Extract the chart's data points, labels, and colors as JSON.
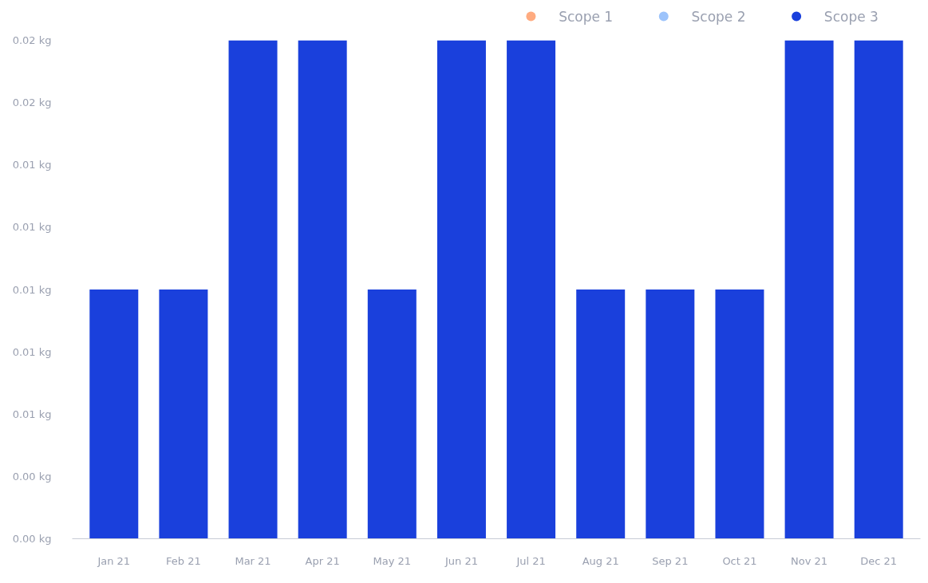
{
  "chart_data": {
    "type": "bar",
    "stacked": true,
    "categories": [
      "Jan 21",
      "Feb 21",
      "Mar 21",
      "Apr 21",
      "May 21",
      "Jun 21",
      "Jul 21",
      "Aug 21",
      "Sep 21",
      "Oct 21",
      "Nov 21",
      "Dec 21"
    ],
    "series": [
      {
        "name": "Scope 1",
        "color": "#ffab80",
        "values": [
          null,
          null,
          null,
          null,
          null,
          null,
          null,
          null,
          null,
          null,
          null,
          null
        ]
      },
      {
        "name": "Scope 2",
        "color": "#9cc3fb",
        "values": [
          null,
          null,
          null,
          null,
          null,
          null,
          null,
          null,
          null,
          null,
          null,
          null
        ]
      },
      {
        "name": "Scope 3",
        "color": "#1a40dc",
        "values": [
          0.01,
          0.01,
          0.02,
          0.02,
          0.01,
          0.02,
          0.02,
          0.01,
          0.01,
          0.01,
          0.02,
          0.02
        ]
      }
    ],
    "ylim": [
      0,
      0.02
    ],
    "yticks": [
      {
        "value": 0,
        "label": "0.00 kg"
      },
      {
        "value": 0.0025,
        "label": "0.00 kg"
      },
      {
        "value": 0.005,
        "label": "0.01 kg"
      },
      {
        "value": 0.0075,
        "label": "0.01 kg"
      },
      {
        "value": 0.01,
        "label": "0.01 kg"
      },
      {
        "value": 0.0125,
        "label": "0.01 kg"
      },
      {
        "value": 0.015,
        "label": "0.01 kg"
      },
      {
        "value": 0.0175,
        "label": "0.02 kg"
      },
      {
        "value": 0.02,
        "label": "0.02 kg"
      }
    ],
    "grid": false,
    "legend": "top right"
  }
}
